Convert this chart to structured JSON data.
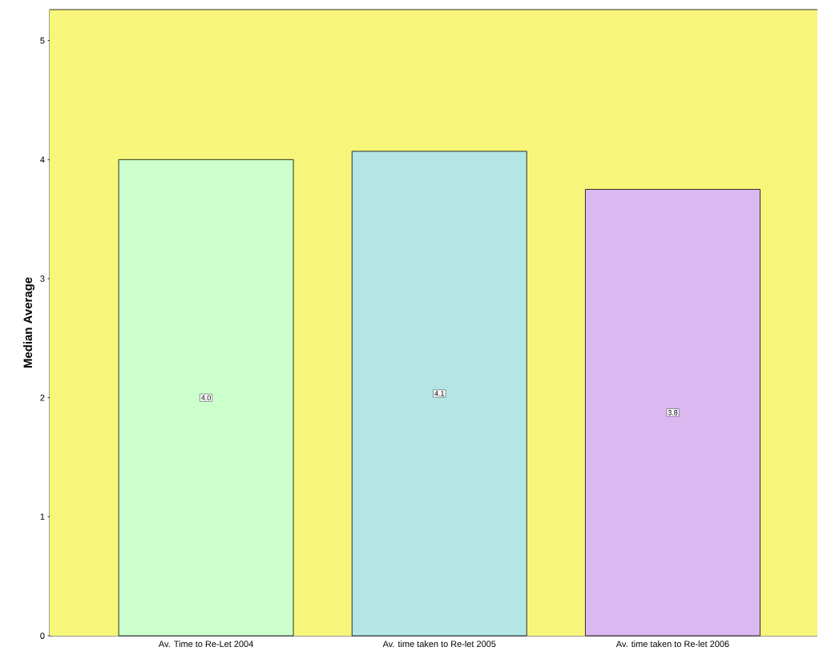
{
  "chart_data": {
    "type": "bar",
    "ylabel": "Median Average",
    "categories": [
      "Av. Time to Re-Let 2004",
      "Av. time taken to Re-let 2005",
      "Av. time taken to Re-let 2006"
    ],
    "values": [
      4.0,
      4.07,
      3.75
    ],
    "value_labels": [
      "4.0",
      "4.1",
      "3.8"
    ],
    "colors": [
      "#ccffcc",
      "#b4e6e6",
      "#dcb8f0"
    ],
    "ylim": [
      0,
      5.26
    ],
    "yticks": [
      0,
      1,
      2,
      3,
      4,
      5
    ]
  }
}
